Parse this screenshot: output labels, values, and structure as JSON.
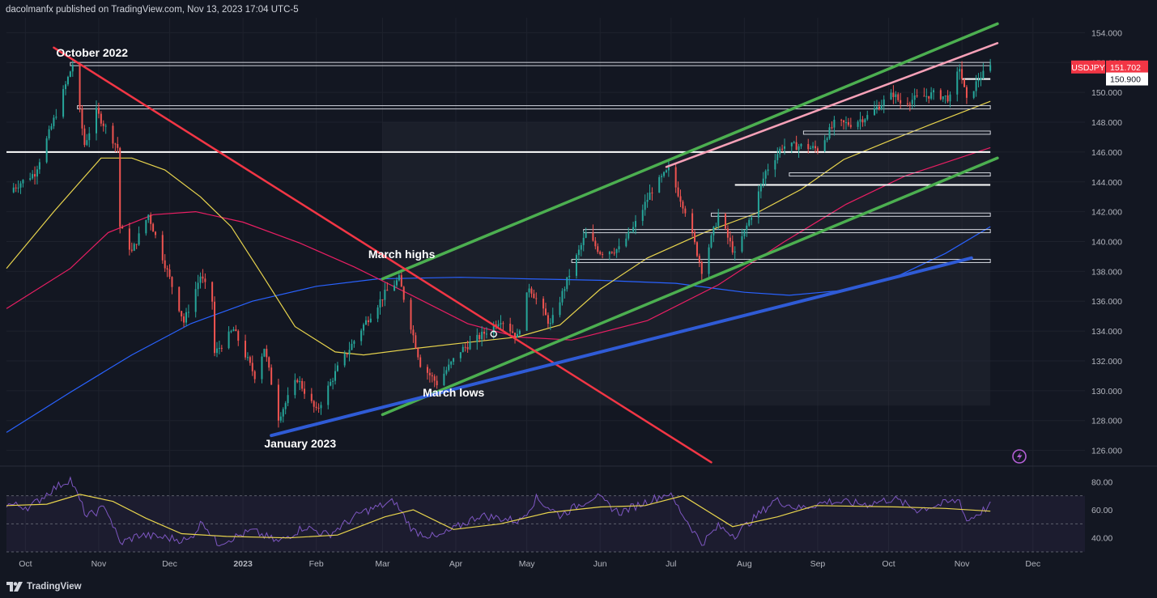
{
  "header": {
    "published_line": "dacolmanfx published on TradingView.com, Nov 13, 2023 17:04 UTC-5"
  },
  "footer": {
    "brand": "TradingView"
  },
  "colors": {
    "background": "#131722",
    "bull_candle": "#26a69a",
    "bear_candle": "#ef5350",
    "channel": "#4caf50",
    "trend_down": "#f23645",
    "trend_up": "#2f5bd6",
    "pink_line": "#f7a1b8",
    "ma_50": "#e8d44d",
    "ma_100": "#e91e63",
    "ma_200": "#2962ff",
    "rsi": "#7e57c2",
    "rsi_ma": "#e8d44d",
    "price_badge": "#f23645"
  },
  "icons": {
    "footer_logo": "tradingview-logo-icon",
    "alert": "lightning-alert-icon"
  },
  "chart_data": [
    {
      "type": "candlestick",
      "symbol": "USDJPY",
      "last_price": 151.702,
      "last_price_label": "151.702",
      "secondary_level_label": "150.900",
      "secondary_level": 150.9,
      "ylim": [
        125,
        155
      ],
      "y_ticks": [
        126,
        128,
        130,
        132,
        134,
        136,
        138,
        140,
        142,
        144,
        146,
        148,
        150,
        152,
        154
      ],
      "y_tick_labels": [
        "126.000",
        "128.000",
        "130.000",
        "132.000",
        "134.000",
        "136.000",
        "138.000",
        "140.000",
        "142.000",
        "144.000",
        "146.000",
        "148.000",
        "150.000",
        "152.000",
        "154.000"
      ],
      "x_ticks": [
        "2022-10-01",
        "2022-11-01",
        "2022-12-01",
        "2023-01-01",
        "2023-02-01",
        "2023-03-01",
        "2023-04-01",
        "2023-05-01",
        "2023-06-01",
        "2023-07-01",
        "2023-08-01",
        "2023-09-01",
        "2023-10-01",
        "2023-11-01",
        "2023-12-01"
      ],
      "x_tick_labels": [
        "Oct",
        "Nov",
        "Dec",
        "2023",
        "Feb",
        "Mar",
        "Apr",
        "May",
        "Jun",
        "Jul",
        "Aug",
        "Sep",
        "Oct",
        "Nov",
        "Dec"
      ],
      "xlim": [
        "2022-09-23",
        "2023-12-23"
      ],
      "price_path": [
        [
          "2022-09-23",
          143.3
        ],
        [
          "2022-10-05",
          144.6
        ],
        [
          "2022-10-14",
          148.6
        ],
        [
          "2022-10-21",
          151.9
        ],
        [
          "2022-10-26",
          146.5
        ],
        [
          "2022-10-31",
          148.7
        ],
        [
          "2022-11-09",
          146.3
        ],
        [
          "2022-11-10",
          141.0
        ],
        [
          "2022-11-15",
          139.3
        ],
        [
          "2022-11-22",
          141.8
        ],
        [
          "2022-11-30",
          138.0
        ],
        [
          "2022-12-07",
          134.6
        ],
        [
          "2022-12-14",
          137.7
        ],
        [
          "2022-12-19",
          136.0
        ],
        [
          "2022-12-20",
          132.5
        ],
        [
          "2022-12-28",
          134.1
        ],
        [
          "2023-01-06",
          131.0
        ],
        [
          "2023-01-10",
          132.9
        ],
        [
          "2023-01-16",
          128.2
        ],
        [
          "2023-01-24",
          130.8
        ],
        [
          "2023-02-01",
          128.6
        ],
        [
          "2023-02-10",
          131.5
        ],
        [
          "2023-02-21",
          134.4
        ],
        [
          "2023-03-02",
          136.5
        ],
        [
          "2023-03-08",
          137.5
        ],
        [
          "2023-03-17",
          131.8
        ],
        [
          "2023-03-24",
          130.5
        ],
        [
          "2023-04-03",
          132.7
        ],
        [
          "2023-04-11",
          133.6
        ],
        [
          "2023-04-20",
          134.8
        ],
        [
          "2023-04-27",
          133.6
        ],
        [
          "2023-05-02",
          137.0
        ],
        [
          "2023-05-11",
          134.4
        ],
        [
          "2023-05-19",
          137.8
        ],
        [
          "2023-05-26",
          140.5
        ],
        [
          "2023-06-01",
          139.3
        ],
        [
          "2023-06-09",
          139.5
        ],
        [
          "2023-06-15",
          140.9
        ],
        [
          "2023-06-23",
          143.5
        ],
        [
          "2023-06-30",
          144.8
        ],
        [
          "2023-07-07",
          142.1
        ],
        [
          "2023-07-14",
          138.1
        ],
        [
          "2023-07-21",
          141.8
        ],
        [
          "2023-07-28",
          139.1
        ],
        [
          "2023-08-04",
          141.8
        ],
        [
          "2023-08-10",
          144.7
        ],
        [
          "2023-08-17",
          146.4
        ],
        [
          "2023-08-25",
          146.4
        ],
        [
          "2023-09-01",
          146.2
        ],
        [
          "2023-09-08",
          147.9
        ],
        [
          "2023-09-15",
          147.9
        ],
        [
          "2023-09-22",
          148.4
        ],
        [
          "2023-09-29",
          149.4
        ],
        [
          "2023-10-03",
          149.9
        ],
        [
          "2023-10-06",
          149.3
        ],
        [
          "2023-10-13",
          149.6
        ],
        [
          "2023-10-20",
          149.9
        ],
        [
          "2023-10-27",
          149.6
        ],
        [
          "2023-10-31",
          151.7
        ],
        [
          "2023-11-03",
          149.4
        ],
        [
          "2023-11-08",
          150.9
        ],
        [
          "2023-11-13",
          151.7
        ]
      ],
      "horizontal_levels": [
        {
          "value": 151.9,
          "from": "2022-10-20",
          "to": "2023-11-13",
          "color": "#d1d4dc",
          "band": true
        },
        {
          "value": 150.9,
          "from": "2023-11-01",
          "to": "2023-11-13",
          "color": "#ffffff",
          "band": false
        },
        {
          "value": 149.0,
          "from": "2022-10-23",
          "to": "2023-11-13",
          "color": "#d1d4dc",
          "band": true
        },
        {
          "value": 147.3,
          "from": "2023-08-26",
          "to": "2023-11-13",
          "color": "#d1d4dc",
          "band": true
        },
        {
          "value": 146.0,
          "from": "2022-09-23",
          "to": "2023-11-13",
          "color": "#ffffff",
          "band": false
        },
        {
          "value": 144.5,
          "from": "2023-08-20",
          "to": "2023-11-13",
          "color": "#d1d4dc",
          "band": true
        },
        {
          "value": 143.8,
          "from": "2023-07-28",
          "to": "2023-11-13",
          "color": "#ffffff",
          "band": false
        },
        {
          "value": 141.8,
          "from": "2023-07-18",
          "to": "2023-11-13",
          "color": "#d1d4dc",
          "band": true
        },
        {
          "value": 140.7,
          "from": "2023-05-25",
          "to": "2023-11-13",
          "color": "#d1d4dc",
          "band": true
        },
        {
          "value": 138.7,
          "from": "2023-05-20",
          "to": "2023-11-13",
          "color": "#d1d4dc",
          "band": true
        }
      ],
      "trendlines": [
        {
          "name": "channel-upper",
          "from": [
            "2023-03-01",
            137.5
          ],
          "to": [
            "2023-11-16",
            154.6
          ],
          "color": "#4caf50",
          "width": 3.5
        },
        {
          "name": "channel-lower",
          "from": [
            "2023-03-01",
            128.4
          ],
          "to": [
            "2023-11-16",
            145.6
          ],
          "color": "#4caf50",
          "width": 3.5
        },
        {
          "name": "downtrend",
          "from": [
            "2022-10-13",
            153.0
          ],
          "to": [
            "2023-07-18",
            125.2
          ],
          "color": "#f23645",
          "width": 2.5
        },
        {
          "name": "uptrend-support",
          "from": [
            "2023-01-13",
            127.0
          ],
          "to": [
            "2023-11-05",
            138.9
          ],
          "color": "#2f5bd6",
          "width": 4
        },
        {
          "name": "pink-resistance",
          "from": [
            "2023-06-29",
            145.0
          ],
          "to": [
            "2023-11-16",
            153.3
          ],
          "color": "#f7a1b8",
          "width": 2.5
        }
      ],
      "shaded_region": {
        "from": "2023-03-01",
        "to": "2023-11-13",
        "ylim": [
          129.0,
          148.0
        ]
      },
      "ma_50": [
        [
          "2022-09-23",
          138.2
        ],
        [
          "2022-10-13",
          142.0
        ],
        [
          "2022-11-02",
          145.6
        ],
        [
          "2022-11-15",
          145.6
        ],
        [
          "2022-11-29",
          144.8
        ],
        [
          "2022-12-14",
          143.0
        ],
        [
          "2022-12-27",
          141.0
        ],
        [
          "2023-01-09",
          137.8
        ],
        [
          "2023-01-23",
          134.3
        ],
        [
          "2023-02-09",
          132.6
        ],
        [
          "2023-02-21",
          132.4
        ],
        [
          "2023-03-13",
          132.8
        ],
        [
          "2023-04-04",
          133.2
        ],
        [
          "2023-04-27",
          133.6
        ],
        [
          "2023-05-15",
          134.4
        ],
        [
          "2023-06-01",
          136.8
        ],
        [
          "2023-06-21",
          138.9
        ],
        [
          "2023-07-15",
          140.6
        ],
        [
          "2023-08-06",
          141.9
        ],
        [
          "2023-08-25",
          143.5
        ],
        [
          "2023-09-12",
          145.5
        ],
        [
          "2023-10-02",
          146.8
        ],
        [
          "2023-10-18",
          147.8
        ],
        [
          "2023-11-13",
          149.4
        ]
      ],
      "ma_100": [
        [
          "2022-09-23",
          135.5
        ],
        [
          "2022-10-20",
          138.2
        ],
        [
          "2022-11-05",
          140.6
        ],
        [
          "2022-11-24",
          141.8
        ],
        [
          "2022-12-12",
          142.0
        ],
        [
          "2023-01-01",
          141.3
        ],
        [
          "2023-01-25",
          139.9
        ],
        [
          "2023-02-17",
          138.3
        ],
        [
          "2023-03-12",
          136.5
        ],
        [
          "2023-04-06",
          134.5
        ],
        [
          "2023-04-27",
          133.6
        ],
        [
          "2023-05-20",
          133.4
        ],
        [
          "2023-06-21",
          134.7
        ],
        [
          "2023-07-21",
          137.1
        ],
        [
          "2023-08-18",
          140.0
        ],
        [
          "2023-09-13",
          142.5
        ],
        [
          "2023-10-08",
          144.4
        ],
        [
          "2023-11-13",
          146.3
        ]
      ],
      "ma_200": [
        [
          "2022-09-23",
          127.2
        ],
        [
          "2022-10-20",
          129.9
        ],
        [
          "2022-11-15",
          132.4
        ],
        [
          "2022-12-10",
          134.5
        ],
        [
          "2023-01-05",
          136.0
        ],
        [
          "2023-02-01",
          137.0
        ],
        [
          "2023-02-27",
          137.5
        ],
        [
          "2023-04-03",
          137.6
        ],
        [
          "2023-05-02",
          137.5
        ],
        [
          "2023-06-01",
          137.4
        ],
        [
          "2023-07-03",
          137.2
        ],
        [
          "2023-08-01",
          136.6
        ],
        [
          "2023-08-20",
          136.4
        ],
        [
          "2023-09-10",
          136.7
        ],
        [
          "2023-10-05",
          137.7
        ],
        [
          "2023-10-25",
          139.2
        ],
        [
          "2023-11-13",
          141.0
        ]
      ],
      "annotations": [
        {
          "text": "October 2022",
          "date": "2022-10-14",
          "value": 152.4
        },
        {
          "text": "March highs",
          "date": "2023-02-23",
          "value": 138.9
        },
        {
          "text": "March lows",
          "date": "2023-03-18",
          "value": 129.6
        },
        {
          "text": "January 2023",
          "date": "2023-01-10",
          "value": 126.2
        }
      ]
    },
    {
      "type": "line",
      "name": "RSI",
      "ylim": [
        30,
        90
      ],
      "y_ticks": [
        40,
        60,
        80
      ],
      "y_tick_labels": [
        "40.00",
        "60.00",
        "80.00"
      ],
      "band": [
        30,
        70
      ],
      "midline": 50,
      "rsi": [
        [
          "2022-09-23",
          64.0
        ],
        [
          "2022-10-03",
          62.0
        ],
        [
          "2022-10-12",
          74.0
        ],
        [
          "2022-10-20",
          82.0
        ],
        [
          "2022-10-27",
          55.0
        ],
        [
          "2022-11-04",
          62.0
        ],
        [
          "2022-11-10",
          36.0
        ],
        [
          "2022-11-18",
          42.0
        ],
        [
          "2022-11-30",
          40.0
        ],
        [
          "2022-12-09",
          38.0
        ],
        [
          "2022-12-15",
          52.0
        ],
        [
          "2022-12-21",
          36.0
        ],
        [
          "2023-01-05",
          45.0
        ],
        [
          "2023-01-16",
          37.0
        ],
        [
          "2023-01-27",
          48.0
        ],
        [
          "2023-02-06",
          42.0
        ],
        [
          "2023-02-20",
          58.0
        ],
        [
          "2023-03-06",
          66.0
        ],
        [
          "2023-03-14",
          45.0
        ],
        [
          "2023-03-24",
          40.0
        ],
        [
          "2023-04-11",
          56.0
        ],
        [
          "2023-04-28",
          52.0
        ],
        [
          "2023-05-05",
          68.0
        ],
        [
          "2023-05-15",
          56.0
        ],
        [
          "2023-05-30",
          70.0
        ],
        [
          "2023-06-09",
          58.0
        ],
        [
          "2023-06-30",
          72.0
        ],
        [
          "2023-07-14",
          36.0
        ],
        [
          "2023-07-21",
          48.0
        ],
        [
          "2023-07-28",
          42.0
        ],
        [
          "2023-08-14",
          67.0
        ],
        [
          "2023-08-24",
          61.0
        ],
        [
          "2023-09-06",
          66.0
        ],
        [
          "2023-09-22",
          64.0
        ],
        [
          "2023-10-03",
          68.0
        ],
        [
          "2023-10-13",
          60.0
        ],
        [
          "2023-10-31",
          67.0
        ],
        [
          "2023-11-03",
          52.0
        ],
        [
          "2023-11-13",
          63.0
        ]
      ],
      "rsi_ma": [
        [
          "2022-09-23",
          63.0
        ],
        [
          "2022-10-10",
          64.0
        ],
        [
          "2022-10-24",
          71.0
        ],
        [
          "2022-11-07",
          66.0
        ],
        [
          "2022-11-21",
          54.0
        ],
        [
          "2022-12-06",
          43.0
        ],
        [
          "2022-12-25",
          41.0
        ],
        [
          "2023-01-20",
          40.0
        ],
        [
          "2023-02-10",
          42.0
        ],
        [
          "2023-03-02",
          55.0
        ],
        [
          "2023-03-14",
          60.0
        ],
        [
          "2023-03-31",
          46.0
        ],
        [
          "2023-04-20",
          50.0
        ],
        [
          "2023-05-10",
          58.0
        ],
        [
          "2023-06-01",
          62.0
        ],
        [
          "2023-06-20",
          63.0
        ],
        [
          "2023-07-06",
          70.0
        ],
        [
          "2023-07-27",
          48.0
        ],
        [
          "2023-08-15",
          55.0
        ],
        [
          "2023-08-31",
          63.0
        ],
        [
          "2023-10-05",
          62.0
        ],
        [
          "2023-10-25",
          61.0
        ],
        [
          "2023-11-13",
          59.0
        ]
      ]
    }
  ]
}
